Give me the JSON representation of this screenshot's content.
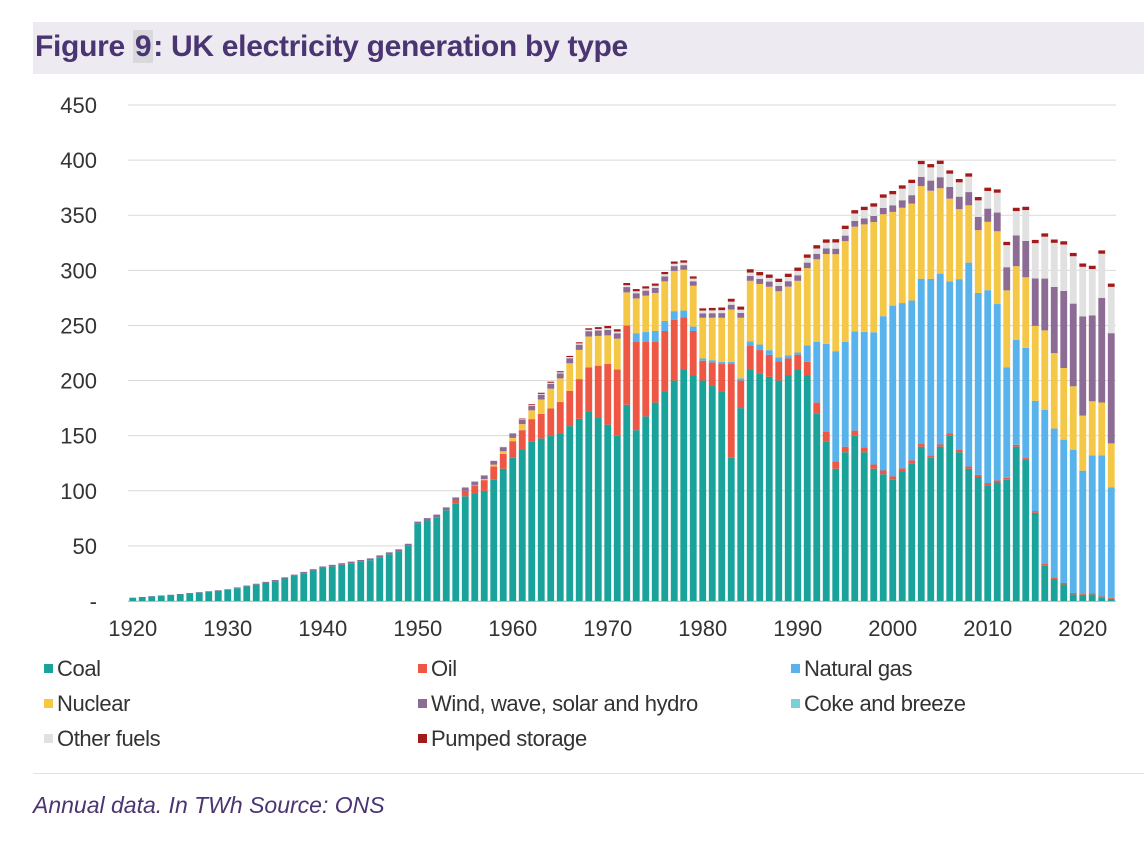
{
  "header": {
    "title_prefix": "Figure ",
    "title_number": "9",
    "title_suffix": ": UK electricity generation by type"
  },
  "note": "Annual data. In TWh Source: ONS",
  "chart_data": {
    "type": "bar",
    "stacked": true,
    "title": "Figure 9: UK electricity generation by type",
    "xlabel": "",
    "ylabel": "",
    "unit": "TWh",
    "ylim": [
      0,
      450
    ],
    "y_ticks": [
      0,
      50,
      100,
      150,
      200,
      250,
      300,
      350,
      400,
      450
    ],
    "y_tick_labels": [
      "-",
      "50",
      "100",
      "150",
      "200",
      "250",
      "300",
      "350",
      "400",
      "450"
    ],
    "x_ticks": [
      1920,
      1930,
      1940,
      1950,
      1960,
      1970,
      1980,
      1990,
      2000,
      2010,
      2020
    ],
    "x_range": [
      1920,
      2023
    ],
    "grid": "horizontal",
    "legend_position": "bottom",
    "series_order": [
      "Coal",
      "Oil",
      "Natural gas",
      "Nuclear",
      "Wind, wave, solar and hydro",
      "Coke and breeze",
      "Other fuels",
      "Pumped storage"
    ],
    "colors": {
      "Coal": "#1aa39b",
      "Oil": "#ef5745",
      "Natural gas": "#58b3ec",
      "Nuclear": "#f5c746",
      "Wind, wave, solar and hydro": "#8c6b94",
      "Coke and breeze": "#7dcfd7",
      "Other fuels": "#e1e1e1",
      "Pumped storage": "#a31a1a"
    },
    "legend": [
      {
        "name": "Coal",
        "col": 0,
        "row": 0
      },
      {
        "name": "Oil",
        "col": 1,
        "row": 0
      },
      {
        "name": "Natural gas",
        "col": 2,
        "row": 0
      },
      {
        "name": "Nuclear",
        "col": 0,
        "row": 1
      },
      {
        "name": "Wind, wave, solar and hydro",
        "col": 1,
        "row": 1
      },
      {
        "name": "Coke and breeze",
        "col": 2,
        "row": 1
      },
      {
        "name": "Other fuels",
        "col": 0,
        "row": 2
      },
      {
        "name": "Pumped storage",
        "col": 1,
        "row": 2
      }
    ],
    "anchors": {
      "Coal": [
        [
          1920,
          3
        ],
        [
          1925,
          6
        ],
        [
          1930,
          10
        ],
        [
          1935,
          18
        ],
        [
          1940,
          30
        ],
        [
          1945,
          37
        ],
        [
          1948,
          45
        ],
        [
          1949,
          50
        ],
        [
          1950,
          70
        ],
        [
          1952,
          76
        ],
        [
          1955,
          95
        ],
        [
          1957,
          100
        ],
        [
          1960,
          130
        ],
        [
          1962,
          145
        ],
        [
          1965,
          152
        ],
        [
          1968,
          172
        ],
        [
          1970,
          160
        ],
        [
          1971,
          150
        ],
        [
          1972,
          178
        ],
        [
          1973,
          155
        ],
        [
          1975,
          180
        ],
        [
          1978,
          210
        ],
        [
          1980,
          200
        ],
        [
          1982,
          190
        ],
        [
          1983,
          130
        ],
        [
          1984,
          175
        ],
        [
          1985,
          210
        ],
        [
          1988,
          200
        ],
        [
          1990,
          210
        ],
        [
          1991,
          205
        ],
        [
          1992,
          170
        ],
        [
          1994,
          120
        ],
        [
          1996,
          150
        ],
        [
          1998,
          120
        ],
        [
          2000,
          110
        ],
        [
          2002,
          125
        ],
        [
          2003,
          140
        ],
        [
          2004,
          130
        ],
        [
          2006,
          150
        ],
        [
          2008,
          120
        ],
        [
          2010,
          105
        ],
        [
          2012,
          110
        ],
        [
          2013,
          140
        ],
        [
          2014,
          128
        ],
        [
          2015,
          80
        ],
        [
          2016,
          32
        ],
        [
          2017,
          20
        ],
        [
          2018,
          15
        ],
        [
          2019,
          6
        ],
        [
          2020,
          5
        ],
        [
          2021,
          6
        ],
        [
          2022,
          3
        ],
        [
          2023,
          2
        ]
      ],
      "Oil": [
        [
          1920,
          0
        ],
        [
          1953,
          0
        ],
        [
          1955,
          5
        ],
        [
          1958,
          12
        ],
        [
          1960,
          15
        ],
        [
          1962,
          20
        ],
        [
          1964,
          25
        ],
        [
          1966,
          32
        ],
        [
          1968,
          40
        ],
        [
          1970,
          55
        ],
        [
          1971,
          60
        ],
        [
          1972,
          72
        ],
        [
          1973,
          80
        ],
        [
          1975,
          55
        ],
        [
          1977,
          55
        ],
        [
          1979,
          40
        ],
        [
          1980,
          18
        ],
        [
          1982,
          25
        ],
        [
          1983,
          85
        ],
        [
          1984,
          25
        ],
        [
          1985,
          22
        ],
        [
          1987,
          20
        ],
        [
          1989,
          15
        ],
        [
          1991,
          12
        ],
        [
          1992,
          10
        ],
        [
          1995,
          5
        ],
        [
          2000,
          3
        ],
        [
          2005,
          2
        ],
        [
          2010,
          2
        ],
        [
          2023,
          1
        ]
      ],
      "Natural gas": [
        [
          1920,
          0
        ],
        [
          1972,
          0
        ],
        [
          1973,
          8
        ],
        [
          1975,
          10
        ],
        [
          1977,
          8
        ],
        [
          1980,
          2
        ],
        [
          1984,
          2
        ],
        [
          1986,
          5
        ],
        [
          1990,
          2
        ],
        [
          1991,
          15
        ],
        [
          1992,
          55
        ],
        [
          1993,
          80
        ],
        [
          1994,
          100
        ],
        [
          1995,
          95
        ],
        [
          1996,
          90
        ],
        [
          1997,
          105
        ],
        [
          1998,
          120
        ],
        [
          1999,
          140
        ],
        [
          2000,
          155
        ],
        [
          2001,
          150
        ],
        [
          2002,
          145
        ],
        [
          2003,
          150
        ],
        [
          2004,
          160
        ],
        [
          2005,
          155
        ],
        [
          2006,
          138
        ],
        [
          2007,
          155
        ],
        [
          2008,
          185
        ],
        [
          2009,
          165
        ],
        [
          2010,
          175
        ],
        [
          2011,
          160
        ],
        [
          2012,
          100
        ],
        [
          2013,
          95
        ],
        [
          2014,
          100
        ],
        [
          2015,
          100
        ],
        [
          2016,
          140
        ],
        [
          2017,
          135
        ],
        [
          2018,
          130
        ],
        [
          2019,
          130
        ],
        [
          2020,
          112
        ],
        [
          2021,
          125
        ],
        [
          2022,
          128
        ],
        [
          2023,
          100
        ]
      ],
      "Nuclear": [
        [
          1920,
          0
        ],
        [
          1955,
          0
        ],
        [
          1957,
          1
        ],
        [
          1960,
          3
        ],
        [
          1962,
          8
        ],
        [
          1964,
          18
        ],
        [
          1966,
          25
        ],
        [
          1968,
          28
        ],
        [
          1970,
          26
        ],
        [
          1972,
          30
        ],
        [
          1974,
          33
        ],
        [
          1976,
          36
        ],
        [
          1978,
          37
        ],
        [
          1980,
          37
        ],
        [
          1982,
          40
        ],
        [
          1984,
          55
        ],
        [
          1986,
          55
        ],
        [
          1988,
          60
        ],
        [
          1990,
          65
        ],
        [
          1992,
          75
        ],
        [
          1994,
          88
        ],
        [
          1996,
          95
        ],
        [
          1998,
          100
        ],
        [
          2000,
          85
        ],
        [
          2002,
          88
        ],
        [
          2004,
          80
        ],
        [
          2006,
          75
        ],
        [
          2008,
          52
        ],
        [
          2010,
          62
        ],
        [
          2012,
          70
        ],
        [
          2014,
          64
        ],
        [
          2016,
          72
        ],
        [
          2018,
          65
        ],
        [
          2020,
          50
        ],
        [
          2022,
          48
        ],
        [
          2023,
          40
        ]
      ],
      "Wind, wave, solar and hydro": [
        [
          1920,
          0
        ],
        [
          1950,
          2
        ],
        [
          1955,
          3
        ],
        [
          1960,
          4
        ],
        [
          1970,
          5
        ],
        [
          1980,
          4
        ],
        [
          1990,
          5
        ],
        [
          1995,
          5
        ],
        [
          2000,
          6
        ],
        [
          2005,
          10
        ],
        [
          2008,
          12
        ],
        [
          2010,
          12
        ],
        [
          2011,
          17
        ],
        [
          2012,
          21
        ],
        [
          2013,
          28
        ],
        [
          2014,
          33
        ],
        [
          2015,
          43
        ],
        [
          2016,
          47
        ],
        [
          2017,
          60
        ],
        [
          2018,
          70
        ],
        [
          2019,
          75
        ],
        [
          2020,
          90
        ],
        [
          2021,
          78
        ],
        [
          2022,
          95
        ],
        [
          2023,
          100
        ]
      ],
      "Coke and breeze": [
        [
          1920,
          0
        ],
        [
          2023,
          0
        ]
      ],
      "Other fuels": [
        [
          1920,
          0
        ],
        [
          1955,
          0
        ],
        [
          1965,
          1
        ],
        [
          1975,
          2
        ],
        [
          1985,
          3
        ],
        [
          1990,
          4
        ],
        [
          1995,
          6
        ],
        [
          2000,
          10
        ],
        [
          2004,
          12
        ],
        [
          2006,
          12
        ],
        [
          2008,
          14
        ],
        [
          2010,
          16
        ],
        [
          2012,
          20
        ],
        [
          2013,
          22
        ],
        [
          2014,
          28
        ],
        [
          2015,
          32
        ],
        [
          2016,
          38
        ],
        [
          2017,
          40
        ],
        [
          2018,
          42
        ],
        [
          2019,
          43
        ],
        [
          2020,
          45
        ],
        [
          2021,
          42
        ],
        [
          2022,
          40
        ],
        [
          2023,
          42
        ]
      ],
      "Pumped storage": [
        [
          1920,
          0
        ],
        [
          1960,
          0
        ],
        [
          1963,
          1
        ],
        [
          1967,
          1
        ],
        [
          1970,
          2
        ],
        [
          1980,
          2
        ],
        [
          1985,
          3
        ],
        [
          1990,
          3
        ],
        [
          2000,
          3
        ],
        [
          2010,
          3
        ],
        [
          2023,
          3
        ]
      ]
    }
  }
}
